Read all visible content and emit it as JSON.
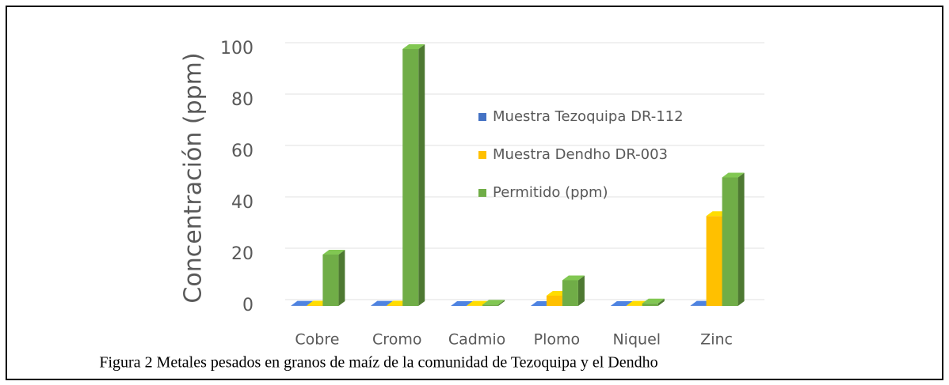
{
  "chart_data": {
    "type": "bar3d",
    "caption": "Figura 2 Metales pesados en granos de maíz de la comunidad de Tezoquipa y el Dendho",
    "y_label": "Concentración (ppm)",
    "categories": [
      "Cobre",
      "Cromo",
      "Cadmio",
      "Plomo",
      "Niquel",
      "Zinc"
    ],
    "series": [
      {
        "name": "Muestra Tezoquipa DR-112",
        "color": "#4472c4",
        "values": [
          0.1,
          0.1,
          0,
          0,
          0,
          0.1
        ]
      },
      {
        "name": "Muestra Dendho DR-003",
        "color": "#ffc000",
        "values": [
          0.2,
          0.2,
          0.1,
          4,
          0.1,
          35
        ]
      },
      {
        "name": "Permitido (ppm)",
        "color": "#70ad47",
        "values": [
          20,
          100,
          0.5,
          10,
          1,
          50
        ]
      }
    ],
    "ylim": [
      0,
      100
    ],
    "yticks": [
      0,
      20,
      40,
      60,
      80,
      100
    ],
    "grid": true
  }
}
